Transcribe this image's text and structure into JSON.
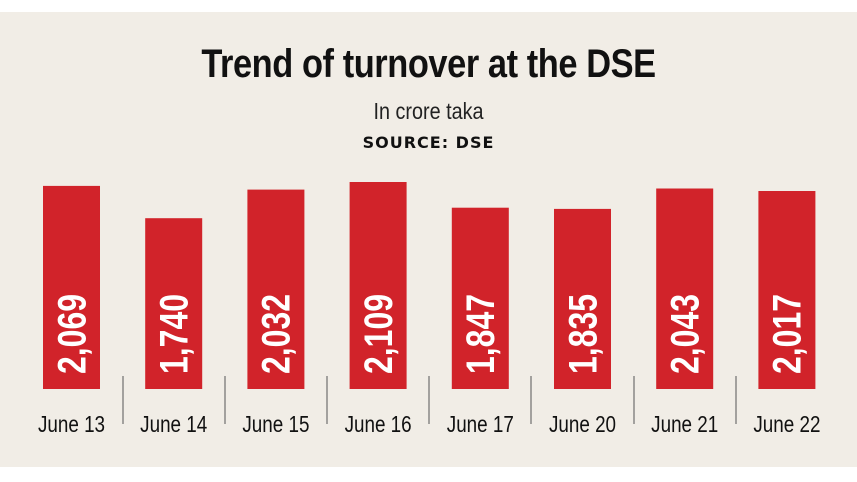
{
  "chart_data": {
    "type": "bar",
    "title": "Trend of turnover at the DSE",
    "subtitle": "In crore taka",
    "source": "SOURCE: DSE",
    "categories": [
      "June 13",
      "June 14",
      "June 15",
      "June 16",
      "June 17",
      "June 20",
      "June 21",
      "June 22"
    ],
    "values": [
      2069,
      1740,
      2032,
      2109,
      1847,
      1835,
      2043,
      2017
    ],
    "value_labels": [
      "2,069",
      "1,740",
      "2,032",
      "2,109",
      "1,847",
      "1,835",
      "2,043",
      "2,017"
    ],
    "xlabel": "",
    "ylabel": "",
    "ylim": [
      0,
      2109
    ],
    "bar_color": "#d1232a",
    "background_color": "#f1ede6"
  }
}
